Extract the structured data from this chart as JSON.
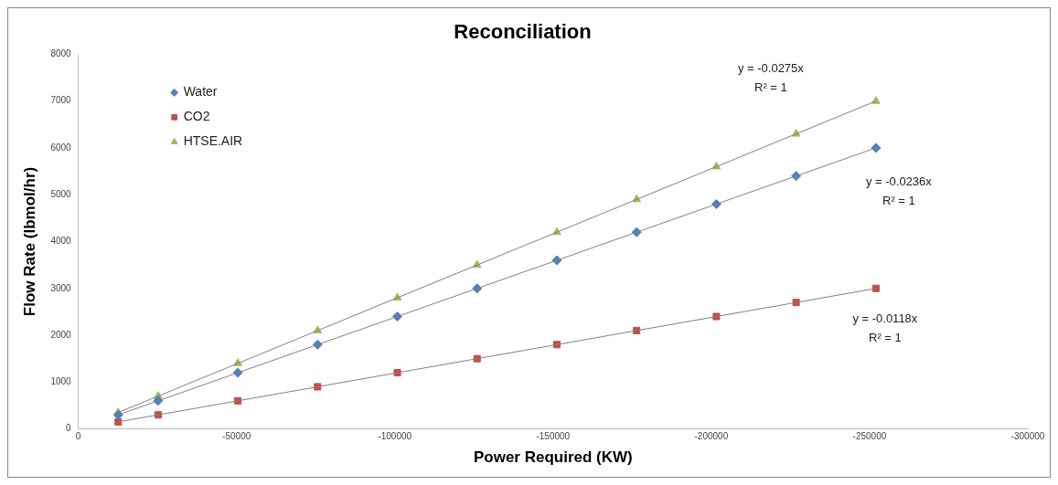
{
  "chart_data": {
    "type": "scatter",
    "title": "Reconciliation",
    "xlabel": "Power Required (KW)",
    "ylabel": "Flow Rate (lbmol/hr)",
    "x": [
      -12600,
      -25200,
      -50400,
      -75600,
      -100800,
      -126000,
      -151200,
      -176400,
      -201600,
      -226800,
      -252000
    ],
    "series": [
      {
        "name": "Water",
        "color": "#4f81bd",
        "marker": "diamond",
        "values": [
          300,
          600,
          1200,
          1800,
          2400,
          3000,
          3600,
          4200,
          4800,
          5400,
          6000
        ]
      },
      {
        "name": "CO2",
        "color": "#c0504d",
        "marker": "square",
        "values": [
          150,
          300,
          600,
          900,
          1200,
          1500,
          1800,
          2100,
          2400,
          2700,
          3000
        ]
      },
      {
        "name": "HTSE.AIR",
        "color": "#9bbb59",
        "marker": "triangle",
        "values": [
          350,
          700,
          1400,
          2100,
          2800,
          3500,
          4200,
          4900,
          5600,
          6300,
          7000
        ]
      },
      {
        "type": "line",
        "color": "#808080",
        "values": [
          350,
          700,
          1400,
          2100,
          2800,
          3500,
          4200,
          4900,
          5600,
          6300,
          7000
        ]
      },
      {
        "type": "line",
        "color": "#808080",
        "values": [
          300,
          600,
          1200,
          1800,
          2400,
          3000,
          3600,
          4200,
          4800,
          5400,
          6000
        ]
      },
      {
        "type": "line",
        "color": "#808080",
        "values": [
          150,
          300,
          600,
          900,
          1200,
          1500,
          1800,
          2100,
          2400,
          2700,
          3000
        ]
      }
    ],
    "xlim": [
      0,
      -300000
    ],
    "xticks": [
      0,
      -50000,
      -100000,
      -150000,
      -200000,
      -250000,
      -300000
    ],
    "ylim": [
      0,
      8000
    ],
    "yticks": [
      0,
      1000,
      2000,
      3000,
      4000,
      5000,
      6000,
      7000,
      8000
    ],
    "grid": false,
    "legend": "top left",
    "annotations": [
      "y = -0.0275x",
      "R² = 1",
      "y = -0.0236x",
      "R² = 1",
      "y = -0.0118x",
      "R² = 1"
    ]
  }
}
